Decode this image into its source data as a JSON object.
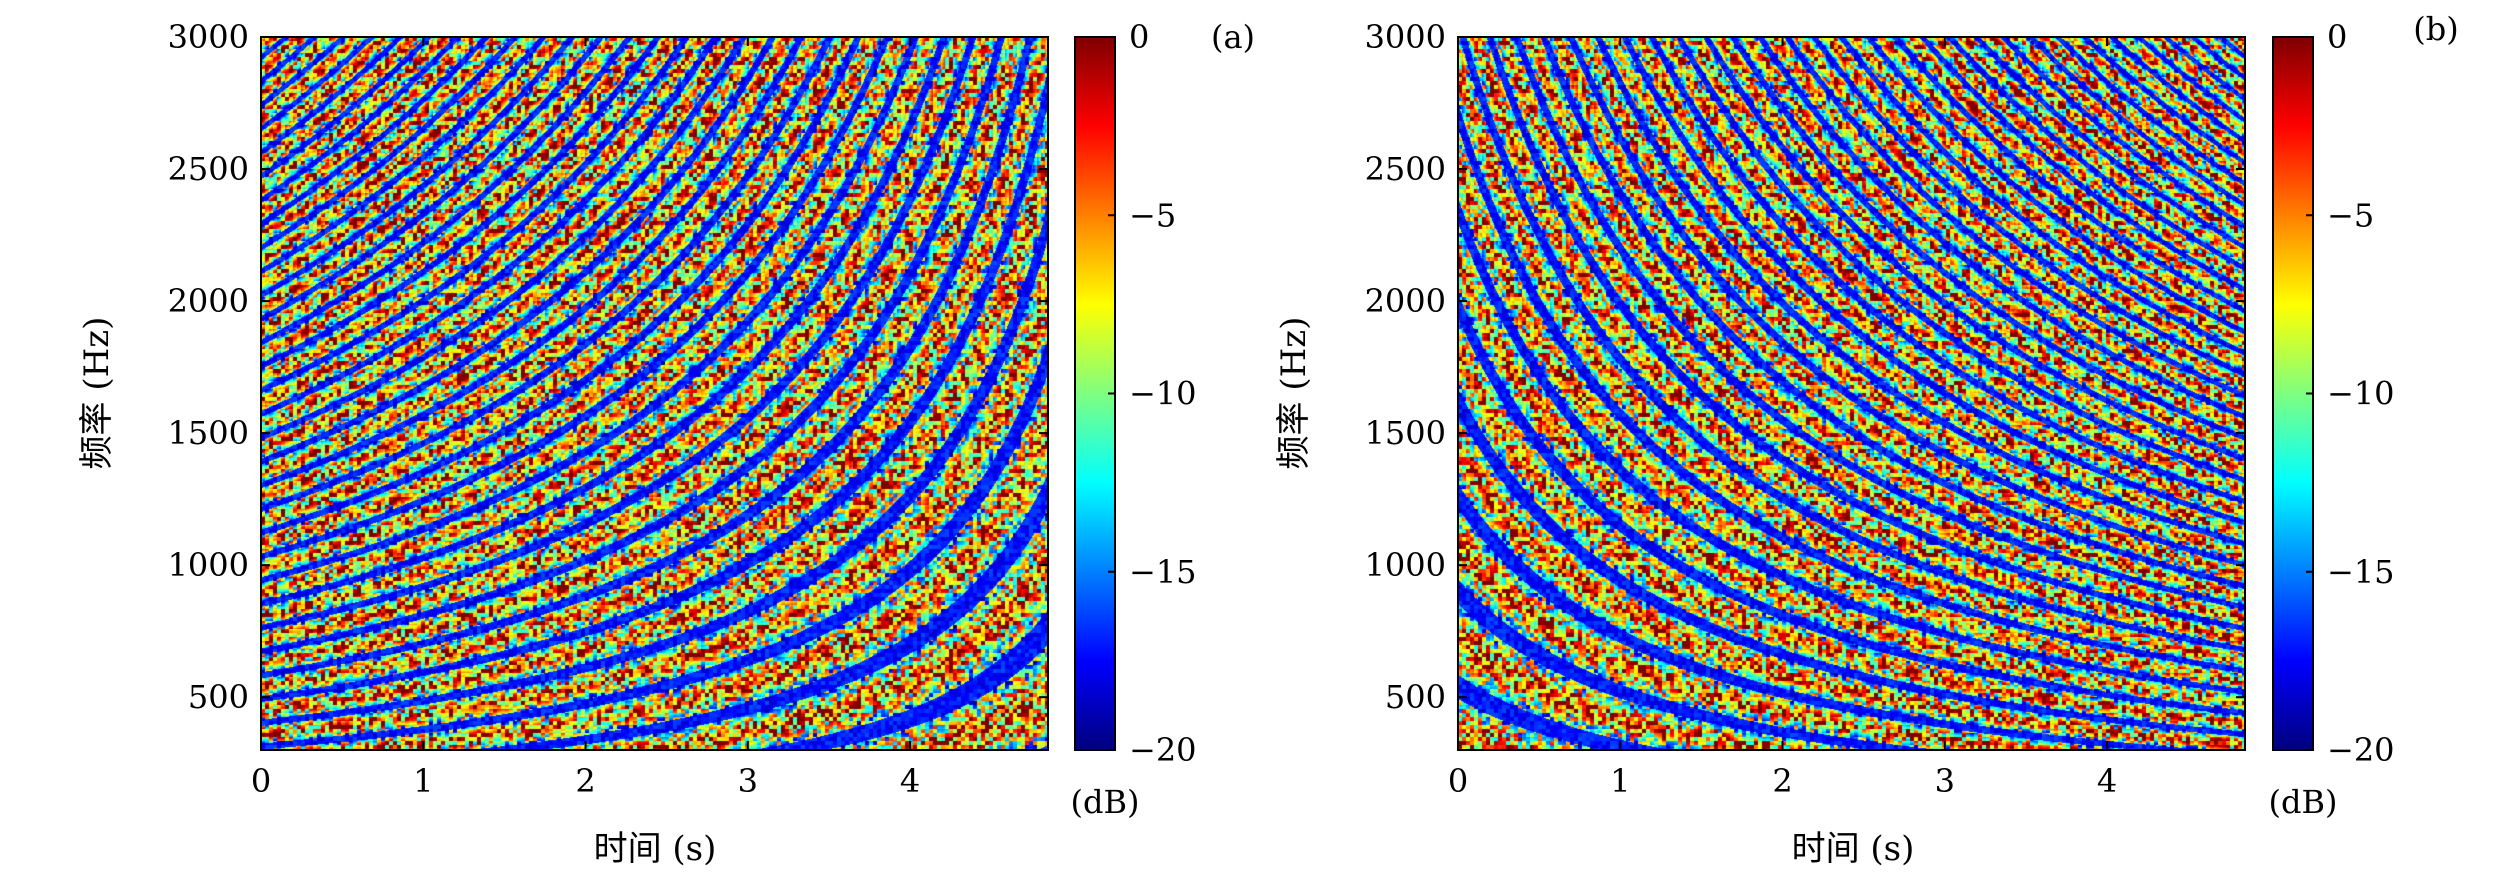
{
  "chart_data": [
    {
      "type": "heatmap",
      "panel_label": "(a)",
      "xlabel": "时间 (s)",
      "ylabel": "频率 (Hz)",
      "xlim": [
        0,
        4.85
      ],
      "ylim": [
        300,
        3000
      ],
      "x_ticks": [
        "0",
        "1",
        "2",
        "3",
        "4"
      ],
      "x_tick_values": [
        0,
        1,
        2,
        3,
        4
      ],
      "y_ticks": [
        "500",
        "1000",
        "1500",
        "2000",
        "2500",
        "3000"
      ],
      "y_tick_values": [
        500,
        1000,
        1500,
        2000,
        2500,
        3000
      ],
      "colorbar": {
        "label": "(dB)",
        "range": [
          -20,
          0
        ],
        "ticks": [
          "0",
          "−5",
          "−10",
          "−15",
          "−20"
        ],
        "tick_values": [
          0,
          -5,
          -10,
          -15,
          -20
        ],
        "colormap": "jet"
      },
      "pattern": "interference striations curving upward with time"
    },
    {
      "type": "heatmap",
      "panel_label": "(b)",
      "xlabel": "时间 (s)",
      "ylabel": "频率 (Hz)",
      "xlim": [
        0,
        4.85
      ],
      "ylim": [
        300,
        3000
      ],
      "x_ticks": [
        "0",
        "1",
        "2",
        "3",
        "4"
      ],
      "x_tick_values": [
        0,
        1,
        2,
        3,
        4
      ],
      "y_ticks": [
        "500",
        "1000",
        "1500",
        "2000",
        "2500",
        "3000"
      ],
      "y_tick_values": [
        500,
        1000,
        1500,
        2000,
        2500,
        3000
      ],
      "colorbar": {
        "label": "(dB)",
        "range": [
          -20,
          0
        ],
        "ticks": [
          "0",
          "−5",
          "−10",
          "−15",
          "−20"
        ],
        "tick_values": [
          0,
          -5,
          -10,
          -15,
          -20
        ],
        "colormap": "jet"
      },
      "pattern": "interference striations curving downward with time"
    }
  ]
}
